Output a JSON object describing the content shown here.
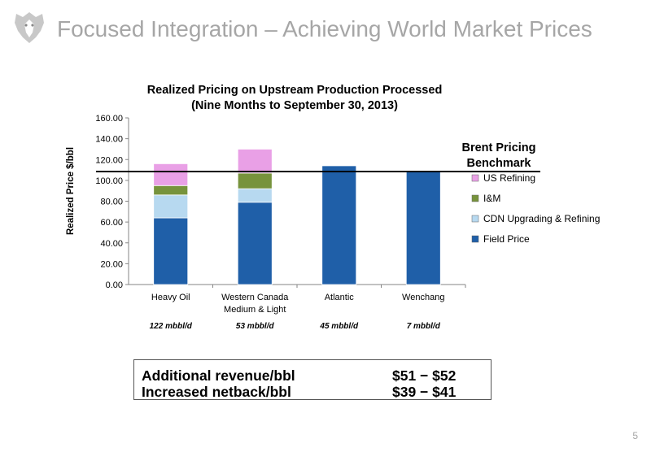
{
  "slide": {
    "title": "Focused Integration – Achieving World Market Prices",
    "page_number": "5"
  },
  "chart_data": {
    "type": "bar",
    "stacked": true,
    "title": "Realized Pricing on Upstream Production Processed",
    "subtitle": "(Nine Months to September 30, 2013)",
    "ylabel": "Realized Price $/bbl",
    "xlabel": "",
    "ylim": [
      0,
      160
    ],
    "y_ticks": [
      "0.00",
      "20.00",
      "40.00",
      "60.00",
      "80.00",
      "100.00",
      "120.00",
      "140.00",
      "160.00"
    ],
    "categories": [
      "Heavy Oil",
      "Western Canada Medium & Light",
      "Atlantic",
      "Wenchang"
    ],
    "category_label_lines": [
      [
        "Heavy Oil"
      ],
      [
        "Western Canada",
        "Medium & Light"
      ],
      [
        "Atlantic"
      ],
      [
        "Wenchang"
      ]
    ],
    "volumes": [
      "122 mbbl/d",
      "53 mbbl/d",
      "45 mbbl/d",
      "7 mbbl/d"
    ],
    "series": [
      {
        "name": "Field Price",
        "color": "#1f5fa8",
        "values": [
          64,
          79,
          114,
          109
        ]
      },
      {
        "name": "CDN Upgrading & Refining",
        "color": "#b7d9f0",
        "values": [
          22,
          13,
          0,
          0
        ]
      },
      {
        "name": "I&M",
        "color": "#77933c",
        "values": [
          9,
          15,
          0,
          0
        ]
      },
      {
        "name": "US Refining",
        "color": "#e9a0e6",
        "values": [
          21,
          23,
          0,
          0
        ]
      }
    ],
    "legend_order": [
      "US Refining",
      "I&M",
      "CDN Upgrading & Refining",
      "Field Price"
    ],
    "legend_position": "right",
    "benchmark": {
      "label_line1": "Brent Pricing",
      "label_line2": "Benchmark",
      "value": 108.5
    },
    "grid": false
  },
  "summary": {
    "rows": [
      {
        "label": "Additional revenue/bbl",
        "value": "$51 − $52"
      },
      {
        "label": "Increased netback/bbl",
        "value": "$39 − $41"
      }
    ]
  }
}
